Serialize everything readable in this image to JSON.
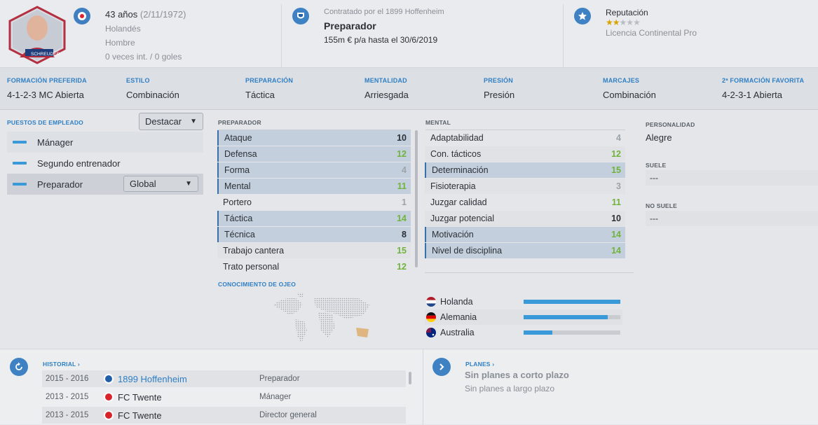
{
  "header": {
    "age": "43 años",
    "dob": "(2/11/1972)",
    "nationality": "Holandés",
    "gender": "Hombre",
    "caps": "0 veces int. / 0 goles",
    "photo_name": "SCHREUDER",
    "contract_line": "Contratado por el 1899 Hoffenheim",
    "role": "Preparador",
    "salary": "155m € p/a hasta el 30/6/2019",
    "reputation_label": "Reputación",
    "reputation_stars": 2,
    "reputation_max": 5,
    "license": "Licencia Continental Pro"
  },
  "prefs": [
    {
      "label": "FORMACIÓN PREFERIDA",
      "value": "4-1-2-3 MC Abierta"
    },
    {
      "label": "ESTILO",
      "value": "Combinación"
    },
    {
      "label": "PREPARACIÓN",
      "value": "Táctica"
    },
    {
      "label": "MENTALIDAD",
      "value": "Arriesgada"
    },
    {
      "label": "PRESIÓN",
      "value": "Presión"
    },
    {
      "label": "MARCAJES",
      "value": "Combinación"
    },
    {
      "label": "2ª FORMACIÓN FAVORITA",
      "value": "4-2-3-1 Abierta"
    }
  ],
  "roles": {
    "title": "PUESTOS DE EMPLEADO",
    "highlight_btn": "Destacar",
    "items": [
      "Mánager",
      "Segundo entrenador",
      "Preparador"
    ],
    "preparador_select": "Global"
  },
  "preparador": {
    "title": "PREPARADOR",
    "attrs": [
      {
        "name": "Ataque",
        "value": "10",
        "hl": true,
        "color": "dk"
      },
      {
        "name": "Defensa",
        "value": "12",
        "hl": true,
        "color": "g"
      },
      {
        "name": "Forma",
        "value": "4",
        "hl": true,
        "color": "gr"
      },
      {
        "name": "Mental",
        "value": "11",
        "hl": true,
        "color": "g"
      },
      {
        "name": "Portero",
        "value": "1",
        "hl": false,
        "color": "gr"
      },
      {
        "name": "Táctica",
        "value": "14",
        "hl": true,
        "color": "g"
      },
      {
        "name": "Técnica",
        "value": "8",
        "hl": true,
        "color": "dk"
      },
      {
        "name": "Trabajo cantera",
        "value": "15",
        "hl": false,
        "color": "g"
      },
      {
        "name": "Trato personal",
        "value": "12",
        "hl": false,
        "color": "g"
      }
    ]
  },
  "mental": {
    "title": "MENTAL",
    "attrs": [
      {
        "name": "Adaptabilidad",
        "value": "4",
        "hl": false,
        "color": "gr"
      },
      {
        "name": "Con. tácticos",
        "value": "12",
        "hl": false,
        "color": "g"
      },
      {
        "name": "Determinación",
        "value": "15",
        "hl": true,
        "color": "g"
      },
      {
        "name": "Fisioterapia",
        "value": "3",
        "hl": false,
        "color": "gr"
      },
      {
        "name": "Juzgar calidad",
        "value": "11",
        "hl": false,
        "color": "g"
      },
      {
        "name": "Juzgar potencial",
        "value": "10",
        "hl": false,
        "color": "dk"
      },
      {
        "name": "Motivación",
        "value": "14",
        "hl": true,
        "color": "g"
      },
      {
        "name": "Nivel de disciplina",
        "value": "14",
        "hl": true,
        "color": "g"
      }
    ]
  },
  "personality": {
    "title": "PERSONALIDAD",
    "value": "Alegre",
    "suele_title": "SUELE",
    "suele_value": "---",
    "no_suele_title": "NO SUELE",
    "no_suele_value": "---"
  },
  "scouting": {
    "title": "CONOCIMIENTO DE OJEO",
    "countries": [
      {
        "name": "Holanda",
        "knowledge": 1.0,
        "flag": "nl"
      },
      {
        "name": "Alemania",
        "knowledge": 0.87,
        "flag": "de"
      },
      {
        "name": "Australia",
        "knowledge": 0.3,
        "flag": "au"
      }
    ]
  },
  "history": {
    "title": "HISTORIAL",
    "rows": [
      {
        "years": "2015 - 2016",
        "club": "1899 Hoffenheim",
        "role": "Preparador",
        "link": true
      },
      {
        "years": "2013 - 2015",
        "club": "FC Twente",
        "role": "Mánager",
        "link": false
      },
      {
        "years": "2013 - 2015",
        "club": "FC Twente",
        "role": "Director general",
        "link": false
      }
    ]
  },
  "plans": {
    "title": "PLANES",
    "short": "Sin planes a corto plazo",
    "long": "Sin planes a largo plazo"
  },
  "colors": {
    "accent": "#2f7fc4",
    "good": "#6fb33b",
    "bar": "#3a9ad9"
  }
}
